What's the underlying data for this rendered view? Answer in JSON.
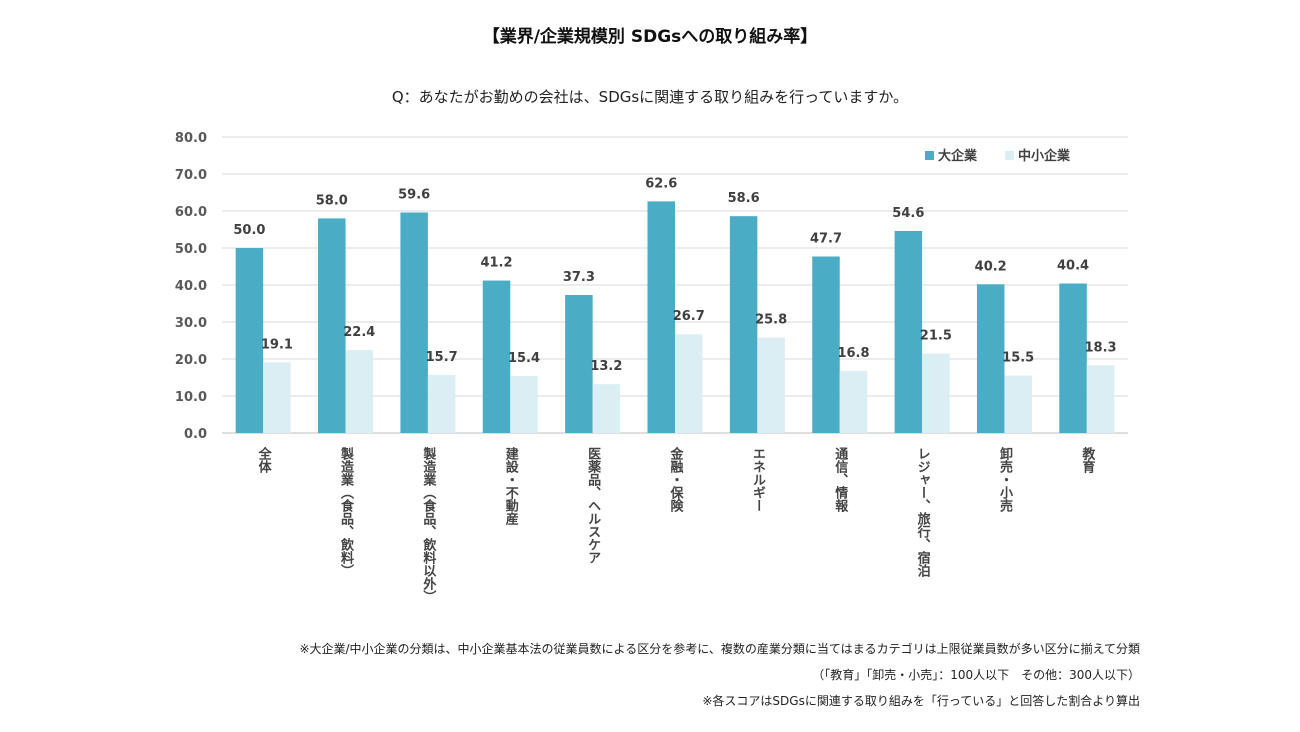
{
  "title": "【業界/企業規模別 SDGsへの取り組み率】",
  "question": "Q：あなたがお勤めの会社は、SDGsに関連する取り組みを行っていますか。",
  "notes": [
    "※大企業/中小企業の分類は、中小企業基本法の従業員数による区分を参考に、複数の産業分類に当てはまるカテゴリは上限従業員数が多い区分に揃えて分類",
    "（「教育」「卸売・小売」：100人以下　その他：300人以下）",
    "※各スコアはSDGsに関連する取り組みを「行っている」と回答した割合より算出"
  ],
  "chart_data": {
    "type": "bar",
    "title": "【業界/企業規模別 SDGsへの取り組み率】",
    "categories": [
      "全体",
      "製造業（食品、飲料）",
      "製造業（食品、飲料以外）",
      "建設・不動産",
      "医薬品、ヘルスケア",
      "金融・保険",
      "エネルギー",
      "通信、情報",
      "レジャー、旅行、宿泊",
      "卸売・小売",
      "教育"
    ],
    "series": [
      {
        "name": "大企業",
        "color": "#4bacc6",
        "values": [
          50.0,
          58.0,
          59.6,
          41.2,
          37.3,
          62.6,
          58.6,
          47.7,
          54.6,
          40.2,
          40.4
        ]
      },
      {
        "name": "中小企業",
        "color": "#daeef3",
        "values": [
          19.1,
          22.4,
          15.7,
          15.4,
          13.2,
          26.7,
          25.8,
          16.8,
          21.5,
          15.5,
          18.3
        ]
      }
    ],
    "yticks": [
      "0.0",
      "10.0",
      "20.0",
      "30.0",
      "40.0",
      "50.0",
      "60.0",
      "70.0",
      "80.0"
    ],
    "ylim": [
      0,
      80
    ],
    "grid": true,
    "legend": "top-right",
    "xlabel": "",
    "ylabel": ""
  }
}
